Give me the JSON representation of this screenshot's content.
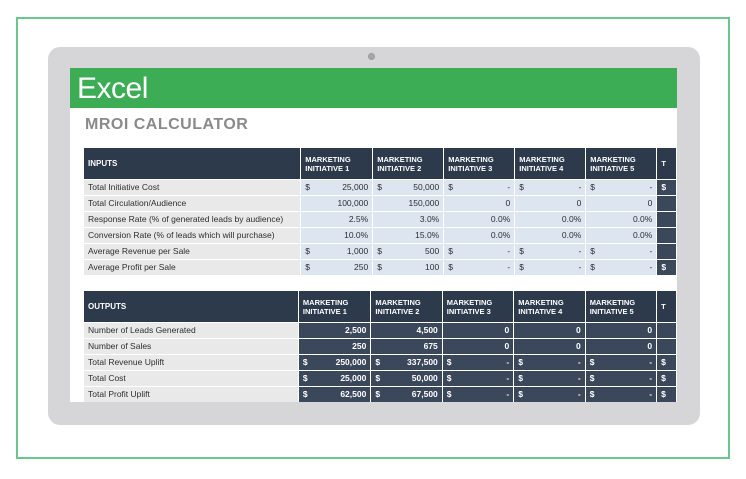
{
  "app": {
    "title": "Excel",
    "brand_color": "#3cad55"
  },
  "sheet": {
    "title": "MROI CALCULATOR"
  },
  "columns": [
    "MARKETING\nINITIATIVE 1",
    "MARKETING\nINITIATIVE 2",
    "MARKETING\nINITIATIVE 3",
    "MARKETING\nINITIATIVE 4",
    "MARKETING\nINITIATIVE 5"
  ],
  "total_header": "T",
  "inputs": {
    "header": "INPUTS",
    "rows": [
      {
        "label": "Total Initiative Cost",
        "cells": [
          [
            "$",
            "25,000"
          ],
          [
            "$",
            "50,000"
          ],
          [
            "$",
            "-"
          ],
          [
            "$",
            "-"
          ],
          [
            "$",
            "-"
          ]
        ],
        "total": "$"
      },
      {
        "label": "Total Circulation/Audience",
        "cells": [
          [
            "",
            "100,000"
          ],
          [
            "",
            "150,000"
          ],
          [
            "",
            "0"
          ],
          [
            "",
            "0"
          ],
          [
            "",
            "0"
          ]
        ],
        "total": ""
      },
      {
        "label": "Response Rate (% of generated leads by audience)",
        "cells": [
          [
            "",
            "2.5%"
          ],
          [
            "",
            "3.0%"
          ],
          [
            "",
            "0.0%"
          ],
          [
            "",
            "0.0%"
          ],
          [
            "",
            "0.0%"
          ]
        ],
        "total": ""
      },
      {
        "label": "Conversion Rate (% of leads which will purchase)",
        "cells": [
          [
            "",
            "10.0%"
          ],
          [
            "",
            "15.0%"
          ],
          [
            "",
            "0.0%"
          ],
          [
            "",
            "0.0%"
          ],
          [
            "",
            "0.0%"
          ]
        ],
        "total": ""
      },
      {
        "label": "Average Revenue per Sale",
        "cells": [
          [
            "$",
            "1,000"
          ],
          [
            "$",
            "500"
          ],
          [
            "$",
            "-"
          ],
          [
            "$",
            "-"
          ],
          [
            "$",
            "-"
          ]
        ],
        "total": ""
      },
      {
        "label": "Average Profit per Sale",
        "cells": [
          [
            "$",
            "250"
          ],
          [
            "$",
            "100"
          ],
          [
            "$",
            "-"
          ],
          [
            "$",
            "-"
          ],
          [
            "$",
            "-"
          ]
        ],
        "total": "$"
      }
    ]
  },
  "outputs": {
    "header": "OUTPUTS",
    "rows": [
      {
        "label": "Number of Leads Generated",
        "cells": [
          [
            "",
            "2,500"
          ],
          [
            "",
            "4,500"
          ],
          [
            "",
            "0"
          ],
          [
            "",
            "0"
          ],
          [
            "",
            "0"
          ]
        ],
        "total": ""
      },
      {
        "label": "Number of Sales",
        "cells": [
          [
            "",
            "250"
          ],
          [
            "",
            "675"
          ],
          [
            "",
            "0"
          ],
          [
            "",
            "0"
          ],
          [
            "",
            "0"
          ]
        ],
        "total": ""
      },
      {
        "label": "Total Revenue Uplift",
        "cells": [
          [
            "$",
            "250,000"
          ],
          [
            "$",
            "337,500"
          ],
          [
            "$",
            "-"
          ],
          [
            "$",
            "-"
          ],
          [
            "$",
            "-"
          ]
        ],
        "total": "$"
      },
      {
        "label": "Total Cost",
        "cells": [
          [
            "$",
            "25,000"
          ],
          [
            "$",
            "50,000"
          ],
          [
            "$",
            "-"
          ],
          [
            "$",
            "-"
          ],
          [
            "$",
            "-"
          ]
        ],
        "total": "$"
      },
      {
        "label": "Total Profit Uplift",
        "cells": [
          [
            "$",
            "62,500"
          ],
          [
            "$",
            "67,500"
          ],
          [
            "$",
            "-"
          ],
          [
            "$",
            "-"
          ],
          [
            "$",
            "-"
          ]
        ],
        "total": "$"
      }
    ]
  }
}
